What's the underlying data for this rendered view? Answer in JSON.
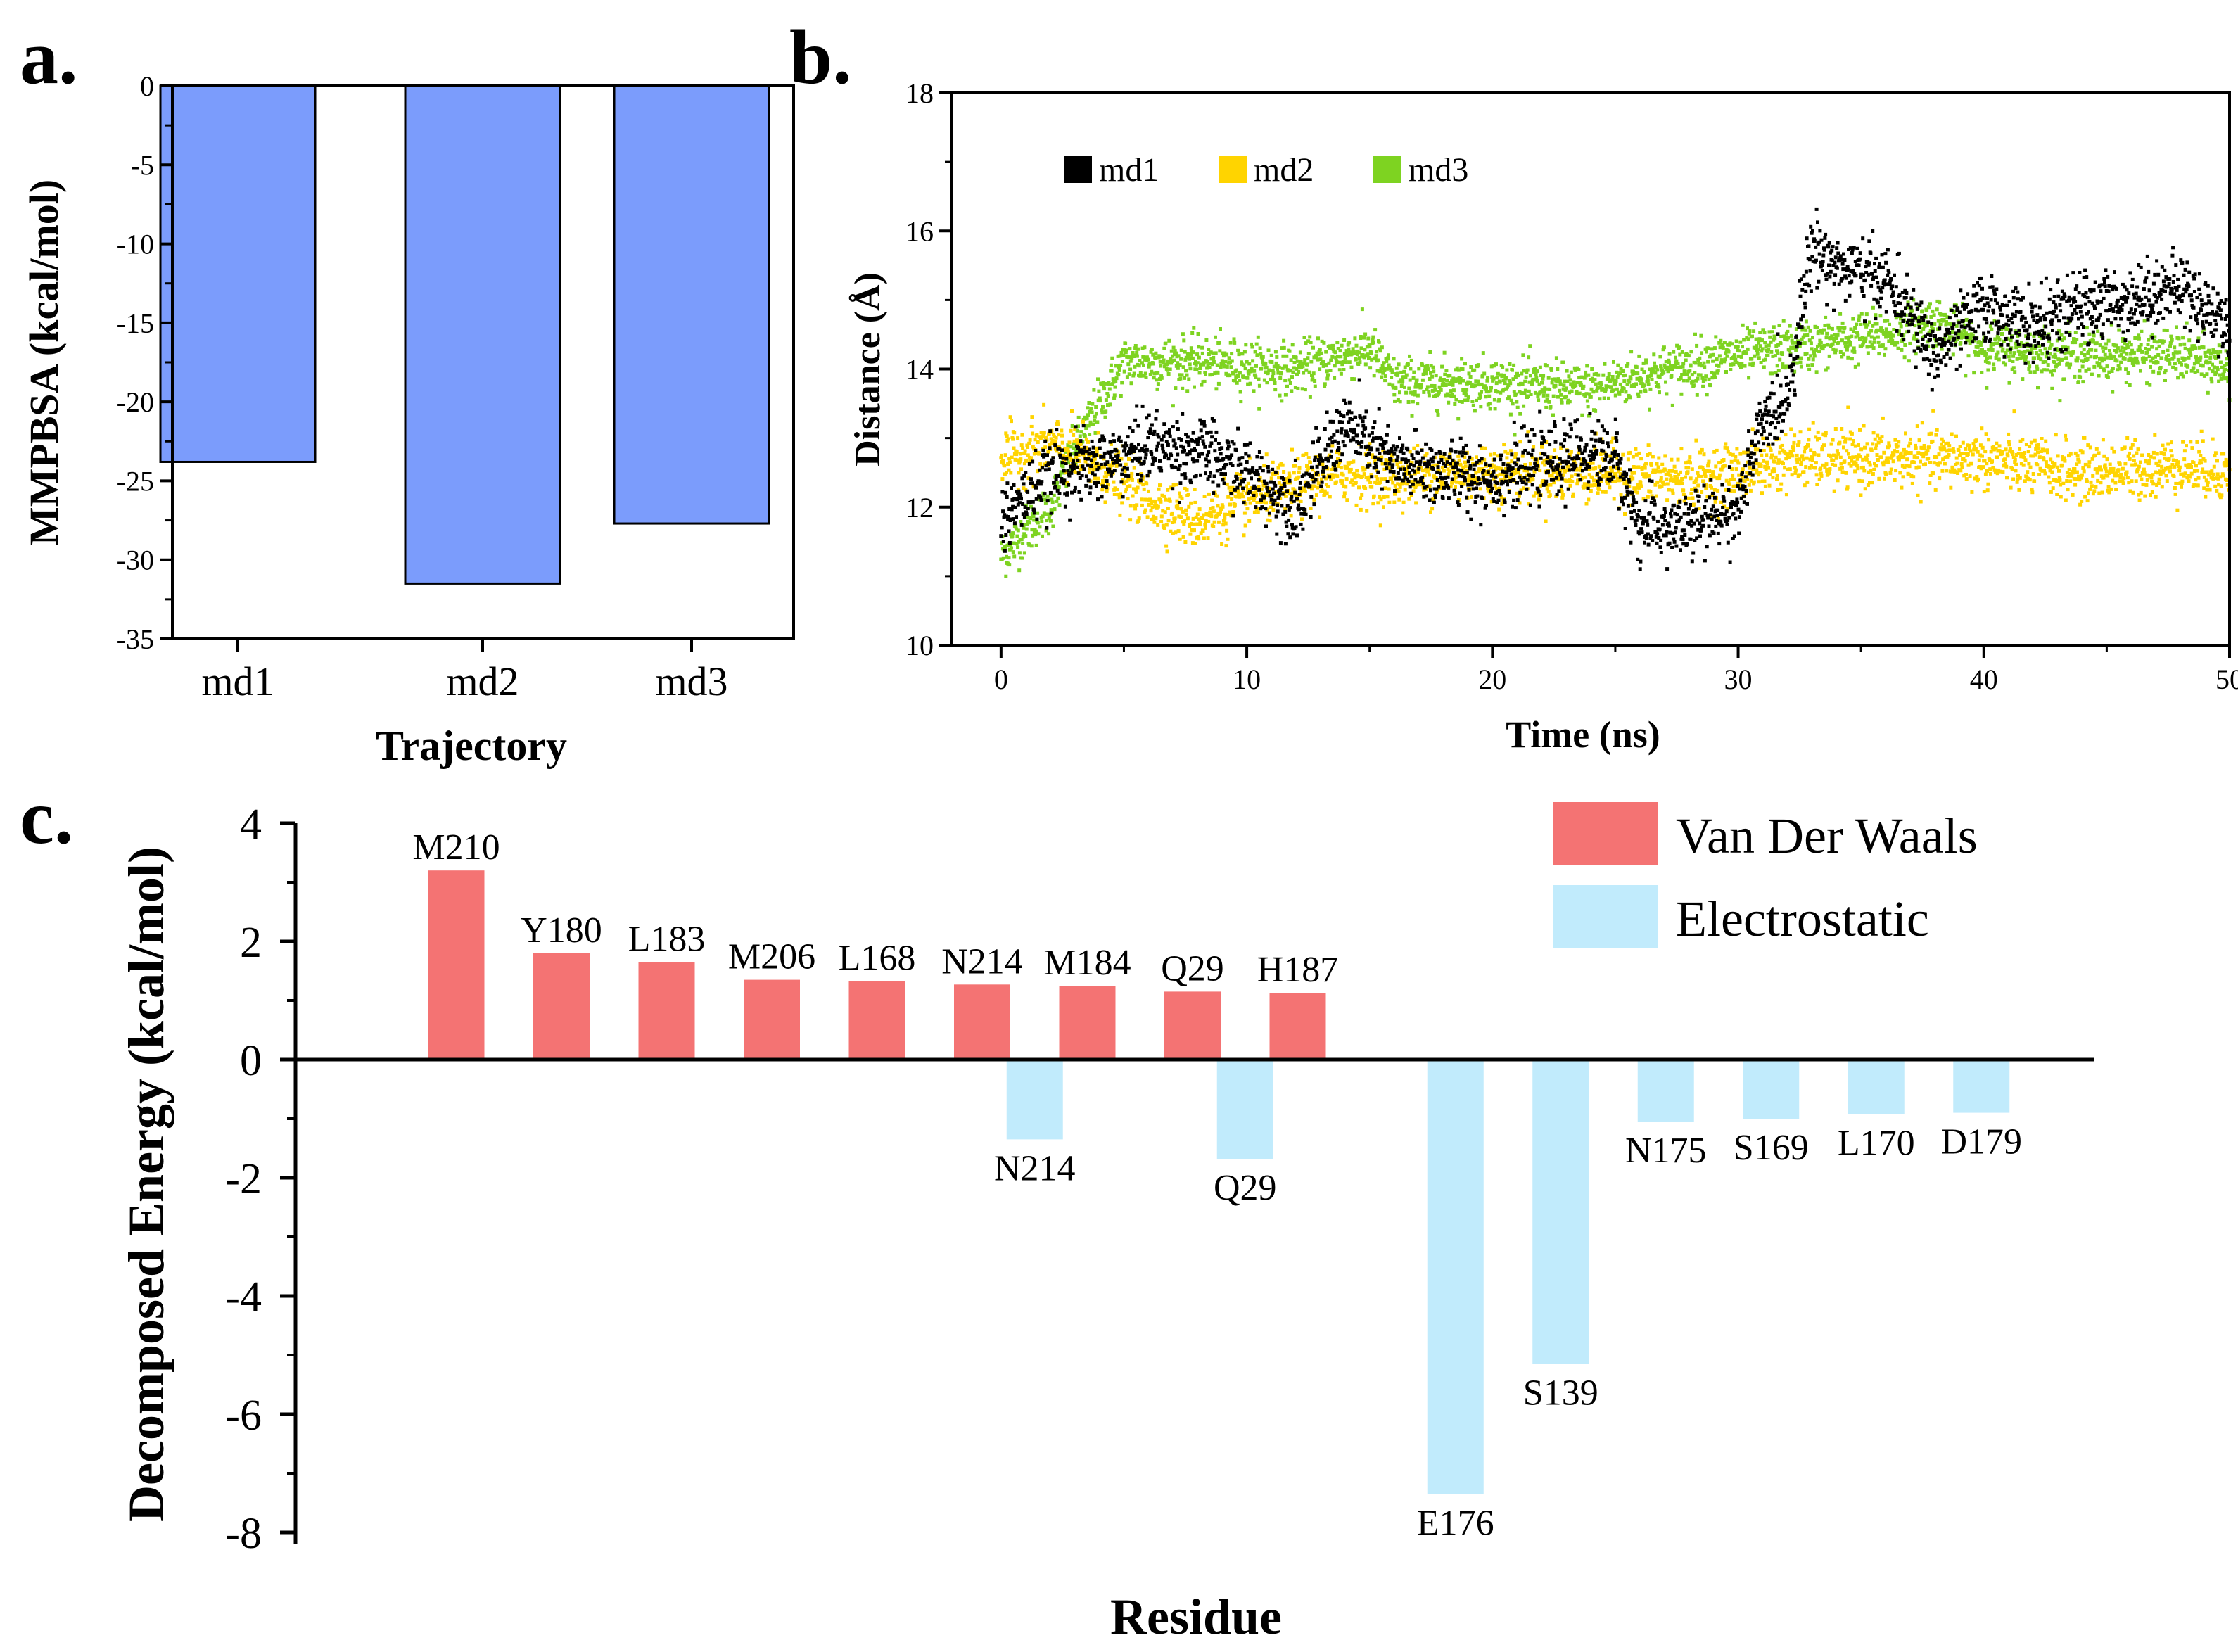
{
  "panel_labels": {
    "a": "a.",
    "b": "b.",
    "c": "c."
  },
  "colors": {
    "bar_a": "#7b9cfc",
    "md1": "#000000",
    "md2": "#ffd400",
    "md3": "#7ed321",
    "vdw": "#f47373",
    "elec": "#c1ebfc"
  },
  "chart_data": [
    {
      "id": "a",
      "type": "bar",
      "title": "",
      "xlabel": "Trajectory",
      "ylabel": "MMPBSA (kcal/mol)",
      "categories": [
        "md1",
        "md2",
        "md3"
      ],
      "values": [
        -23.8,
        -31.5,
        -27.7
      ],
      "ylim": [
        -35,
        0
      ],
      "yticks": [
        0,
        -5,
        -10,
        -15,
        -20,
        -25,
        -30,
        -35
      ],
      "ytick_labels": [
        "0",
        "-5",
        "-10",
        "-15",
        "-20",
        "-25",
        "-30",
        "-35"
      ]
    },
    {
      "id": "b",
      "type": "scatter",
      "title": "",
      "xlabel": "Time (ns)",
      "ylabel": "Distance (Å)",
      "xlim": [
        -2,
        50
      ],
      "ylim": [
        10,
        18
      ],
      "xticks": [
        0,
        10,
        20,
        30,
        40,
        50
      ],
      "xtick_labels": [
        "0",
        "10",
        "20",
        "30",
        "40",
        "50"
      ],
      "yticks": [
        10,
        12,
        14,
        16,
        18
      ],
      "ytick_labels": [
        "10",
        "12",
        "14",
        "16",
        "18"
      ],
      "legend": {
        "position": "top-left",
        "entries": [
          "md1",
          "md2",
          "md3"
        ]
      },
      "series": [
        {
          "name": "md1",
          "trend": {
            "x": [
              0,
              2,
              4,
              6,
              8,
              10,
              12,
              14,
              16,
              18,
              20,
              22,
              24,
              25,
              26,
              28,
              30,
              31,
              32,
              33,
              34,
              36,
              38,
              40,
              42,
              44,
              46,
              48,
              50
            ],
            "y": [
              11.8,
              12.5,
              12.6,
              12.9,
              12.8,
              12.5,
              12.0,
              13.2,
              12.6,
              12.5,
              12.4,
              12.6,
              12.8,
              12.7,
              11.7,
              11.7,
              12.0,
              13.2,
              13.6,
              15.8,
              15.5,
              15.3,
              14.2,
              14.9,
              14.6,
              14.9,
              15.0,
              15.2,
              14.6
            ]
          },
          "noise": 0.45
        },
        {
          "name": "md2",
          "trend": {
            "x": [
              0,
              2,
              4,
              6,
              8,
              10,
              12,
              14,
              16,
              18,
              20,
              24,
              28,
              30,
              32,
              36,
              40,
              44,
              48,
              50
            ],
            "y": [
              12.7,
              12.9,
              12.6,
              12.1,
              11.8,
              12.1,
              12.3,
              12.5,
              12.4,
              12.5,
              12.5,
              12.5,
              12.4,
              12.5,
              12.7,
              12.7,
              12.7,
              12.5,
              12.6,
              12.5
            ]
          },
          "noise": 0.38
        },
        {
          "name": "md3",
          "trend": {
            "x": [
              0,
              2,
              3,
              4,
              5,
              8,
              12,
              15,
              16,
              20,
              24,
              26,
              30,
              32,
              34,
              36,
              38,
              40,
              44,
              48,
              50
            ],
            "y": [
              11.3,
              12.0,
              12.8,
              13.5,
              14.1,
              14.1,
              14.0,
              14.3,
              13.8,
              13.8,
              13.7,
              13.9,
              14.2,
              14.3,
              14.4,
              14.5,
              14.7,
              14.3,
              14.2,
              14.2,
              14.0
            ]
          },
          "noise": 0.33
        }
      ]
    },
    {
      "id": "c",
      "type": "bar",
      "title": "",
      "xlabel": "Residue",
      "ylabel": "Decomposed Energy (kcal/mol)",
      "ylim": [
        -8.3,
        4
      ],
      "yticks": [
        4,
        2,
        0,
        -2,
        -4,
        -6,
        -8
      ],
      "ytick_labels": [
        "4",
        "2",
        "0",
        "-2",
        "-4",
        "-6",
        "-8"
      ],
      "legend": {
        "position": "top-right",
        "entries": [
          "Van Der Waals",
          "Electrostatic"
        ]
      },
      "series": [
        {
          "name": "Van Der Waals",
          "bars": [
            {
              "label": "M210",
              "slot": 1,
              "value": 3.2
            },
            {
              "label": "Y180",
              "slot": 2,
              "value": 1.8
            },
            {
              "label": "L183",
              "slot": 3,
              "value": 1.65
            },
            {
              "label": "M206",
              "slot": 4,
              "value": 1.35
            },
            {
              "label": "L168",
              "slot": 5,
              "value": 1.33
            },
            {
              "label": "N214",
              "slot": 6,
              "value": 1.27
            },
            {
              "label": "M184",
              "slot": 7,
              "value": 1.25
            },
            {
              "label": "Q29",
              "slot": 8,
              "value": 1.15
            },
            {
              "label": "H187",
              "slot": 9,
              "value": 1.13
            }
          ]
        },
        {
          "name": "Electrostatic",
          "bars": [
            {
              "label": "N214",
              "slot": 6.5,
              "value": -1.35
            },
            {
              "label": "Q29",
              "slot": 8.5,
              "value": -1.68
            },
            {
              "label": "E176",
              "slot": 10.5,
              "value": -7.35
            },
            {
              "label": "S139",
              "slot": 11.5,
              "value": -5.15
            },
            {
              "label": "N175",
              "slot": 12.5,
              "value": -1.05
            },
            {
              "label": "S169",
              "slot": 13.5,
              "value": -1.0
            },
            {
              "label": "L170",
              "slot": 14.5,
              "value": -0.92
            },
            {
              "label": "D179",
              "slot": 15.5,
              "value": -0.9
            }
          ]
        }
      ]
    }
  ]
}
